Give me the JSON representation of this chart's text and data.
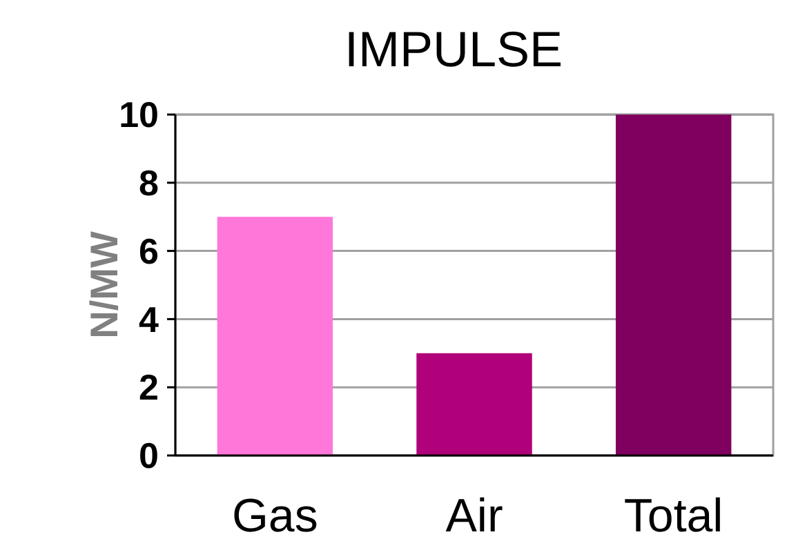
{
  "chart_data": {
    "type": "bar",
    "title": "IMPULSE",
    "ylabel": "N/MW",
    "categories": [
      "Gas",
      "Air",
      "Total"
    ],
    "values": [
      7,
      3,
      10
    ],
    "colors": [
      "#ff77d9",
      "#b0007a",
      "#80005f"
    ],
    "ylim": [
      0,
      10
    ],
    "yticks": [
      0,
      2,
      4,
      6,
      8,
      10
    ],
    "grid": "y"
  }
}
